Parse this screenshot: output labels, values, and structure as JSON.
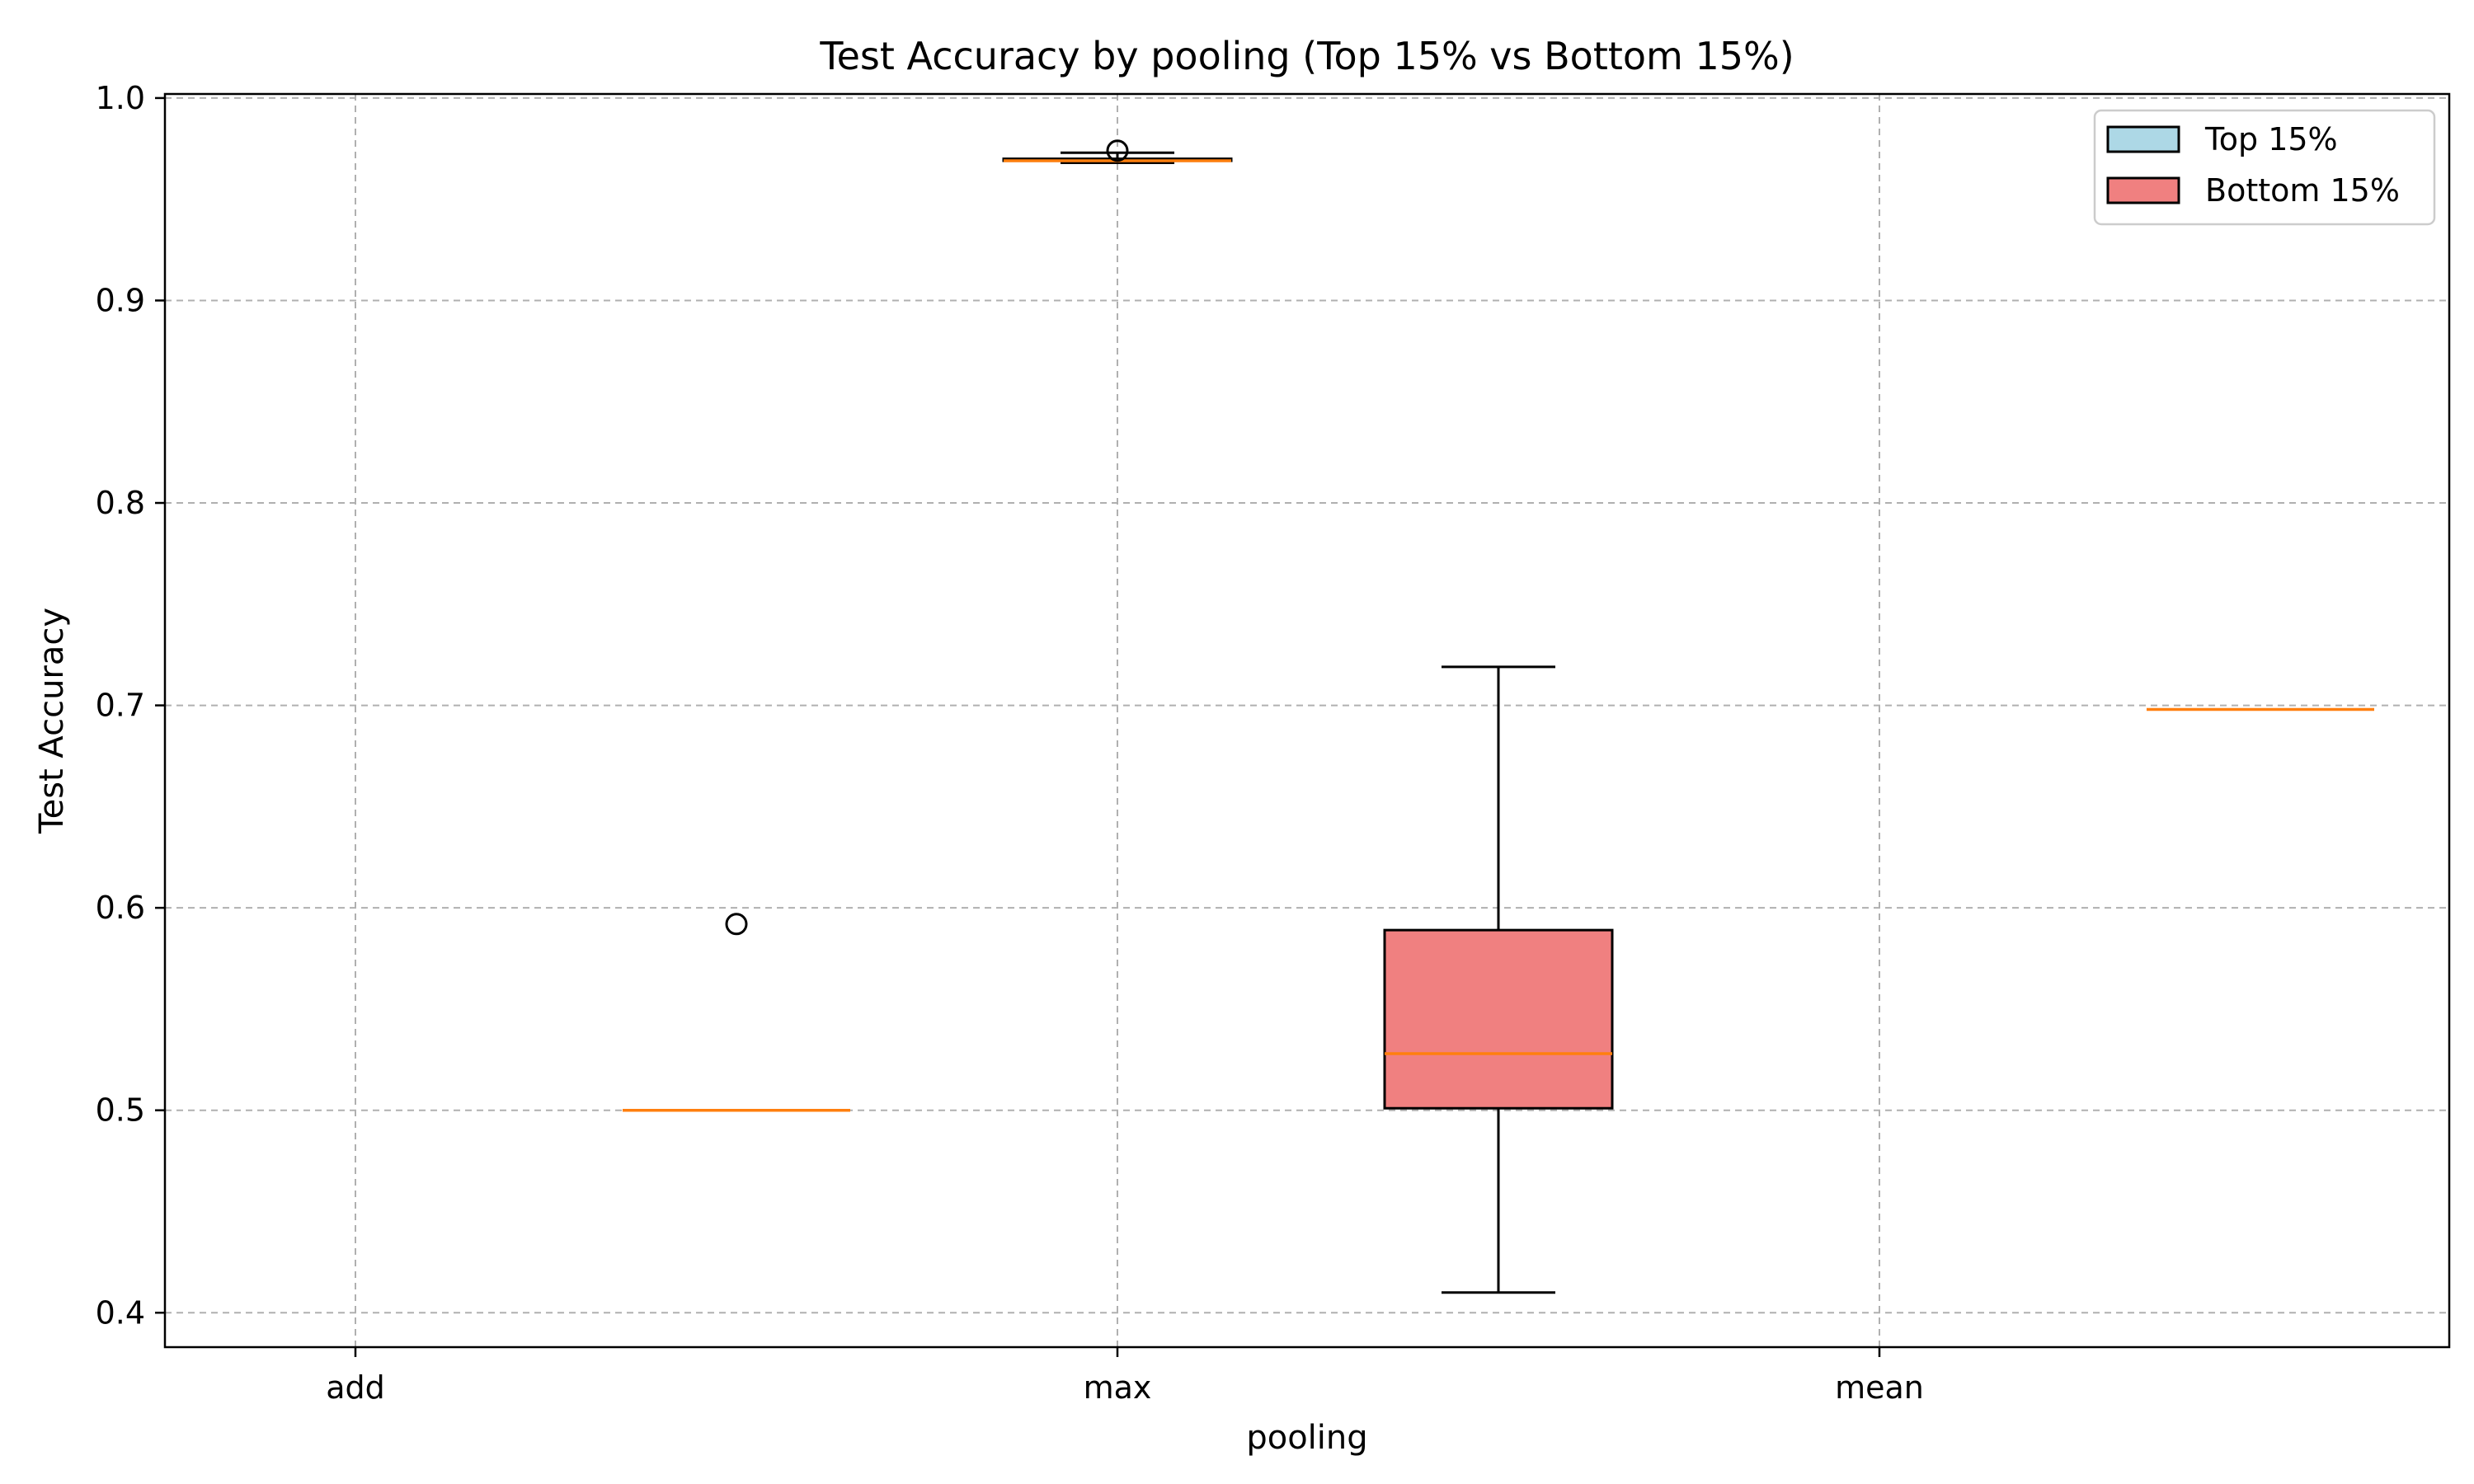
{
  "chart_data": {
    "type": "box",
    "title": "Test Accuracy by pooling (Top 15% vs Bottom 15%)",
    "xlabel": "pooling",
    "ylabel": "Test Accuracy",
    "categories": [
      "add",
      "max",
      "mean"
    ],
    "ylim": [
      0.383,
      1.002
    ],
    "yticks": [
      0.4,
      0.5,
      0.6,
      0.7,
      0.8,
      0.9,
      1.0
    ],
    "grid": true,
    "legend_position": "top-right",
    "median_color": "#ff7f0e",
    "series": [
      {
        "name": "Top 15%",
        "color": "#add8e6",
        "boxes": [
          {
            "category": "max",
            "whisker_low": 0.968,
            "q1": 0.969,
            "median": 0.969,
            "q3": 0.97,
            "whisker_high": 0.973,
            "fliers": [
              0.974
            ]
          }
        ]
      },
      {
        "name": "Bottom 15%",
        "color": "#f08080",
        "boxes": [
          {
            "category": "add",
            "whisker_low": 0.5,
            "q1": 0.5,
            "median": 0.5,
            "q3": 0.5,
            "whisker_high": 0.5,
            "fliers": [
              0.592
            ]
          },
          {
            "category": "max",
            "whisker_low": 0.41,
            "q1": 0.501,
            "median": 0.528,
            "q3": 0.589,
            "whisker_high": 0.719,
            "fliers": []
          },
          {
            "category": "mean",
            "whisker_low": 0.698,
            "q1": 0.698,
            "median": 0.698,
            "q3": 0.698,
            "whisker_high": 0.698,
            "fliers": []
          }
        ]
      }
    ]
  }
}
